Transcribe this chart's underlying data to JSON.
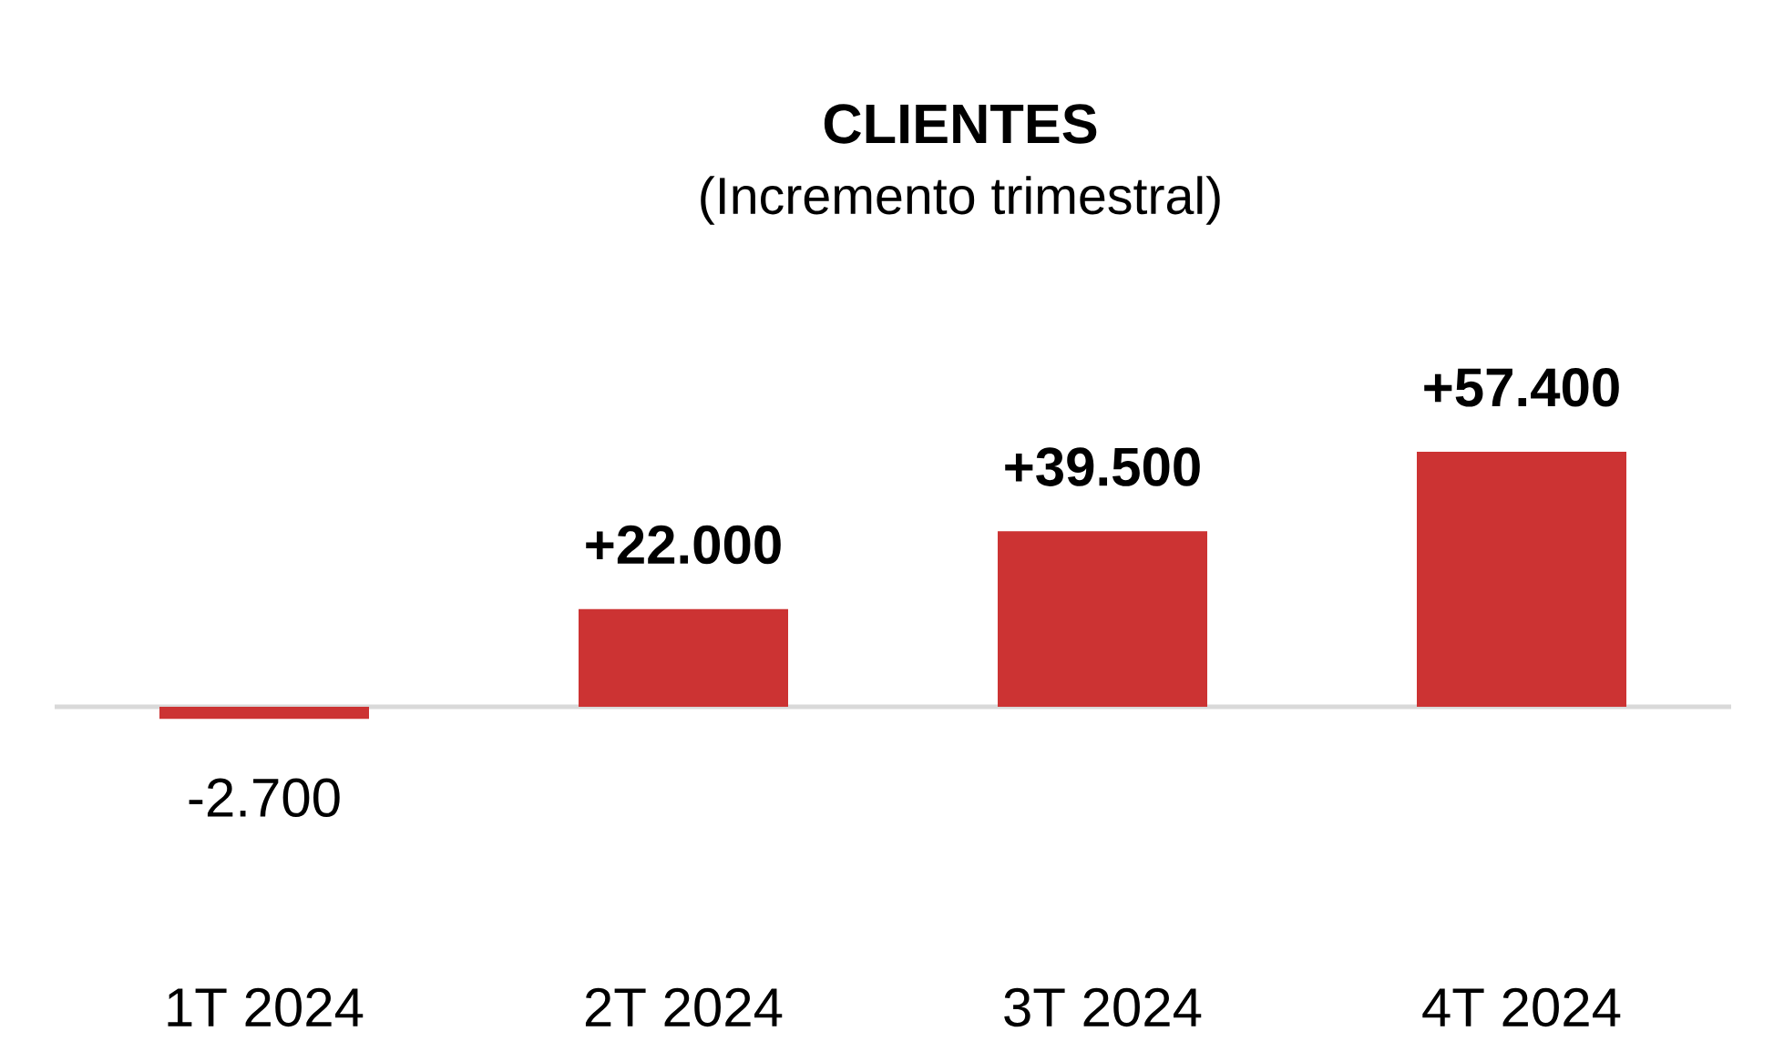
{
  "chart_data": {
    "type": "bar",
    "title": "CLIENTES",
    "subtitle": "(Incremento trimestral)",
    "categories": [
      "1T 2024",
      "2T 2024",
      "3T 2024",
      "4T 2024"
    ],
    "values": [
      -2700,
      22000,
      39500,
      57400
    ],
    "color": "#cc3333",
    "value_labels": [
      "-2.700",
      "+22.000",
      "+39.500",
      "+57.400"
    ]
  }
}
